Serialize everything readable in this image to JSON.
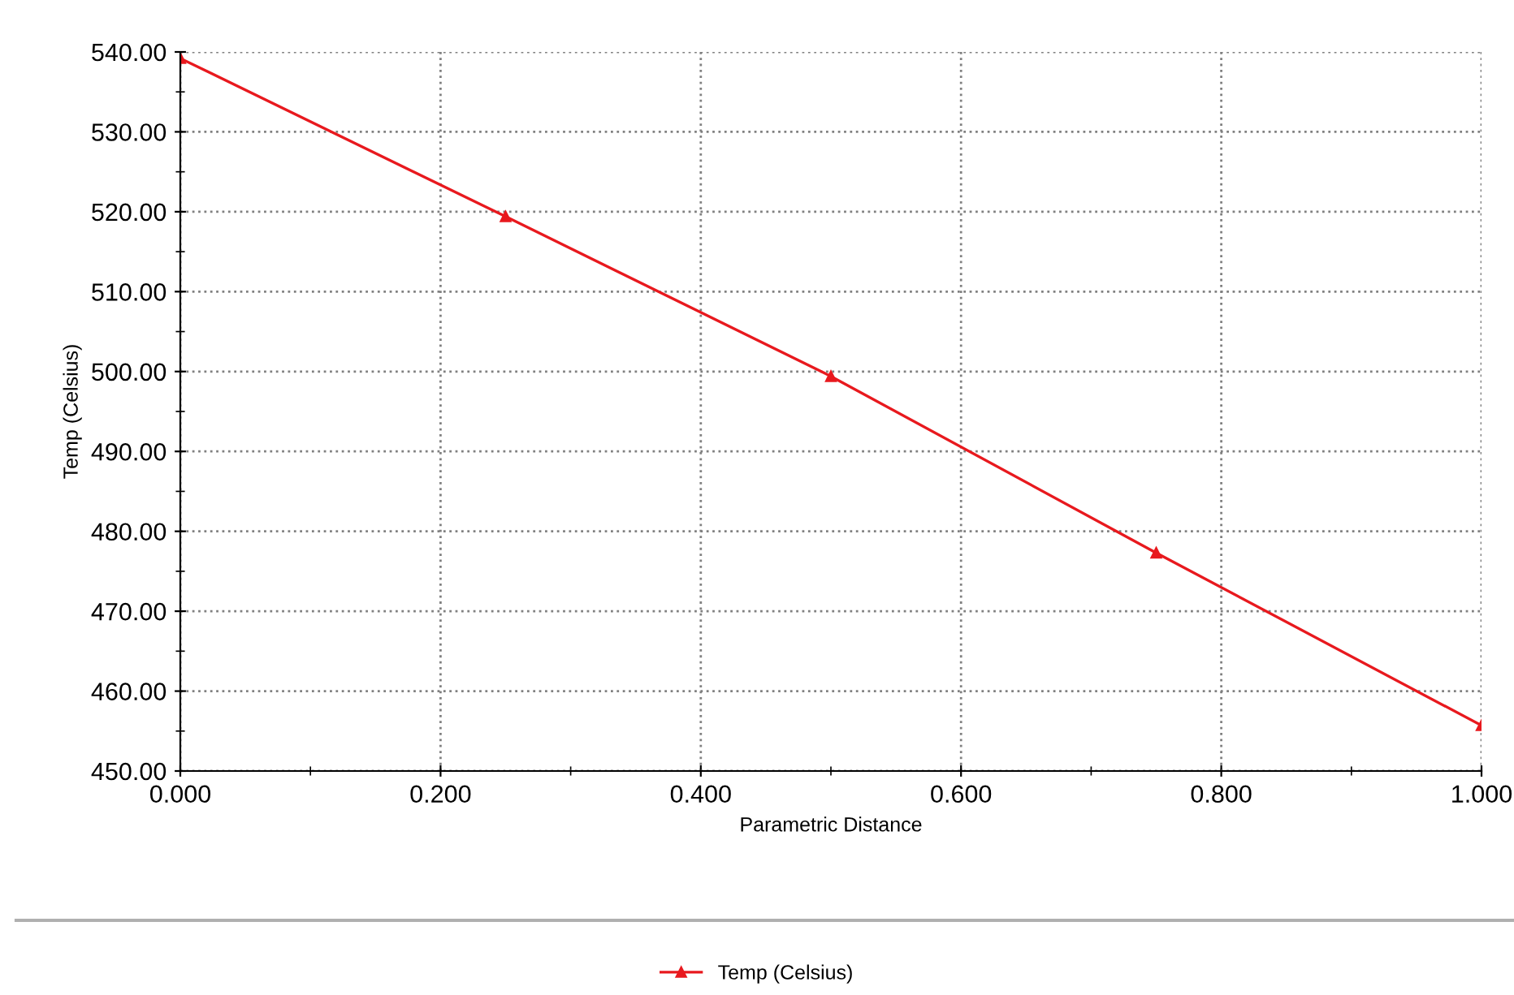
{
  "chart_data": {
    "type": "line",
    "xlabel": "Parametric Distance",
    "ylabel": "Temp (Celsius)",
    "x": [
      0,
      0.25,
      0.5,
      0.75,
      1.0
    ],
    "series": [
      {
        "name": "Temp (Celsius)",
        "color": "#e8191e",
        "values": [
          539.2,
          519.4,
          499.4,
          477.3,
          455.7
        ]
      }
    ],
    "xlim": [
      0,
      1.0
    ],
    "xticks": [
      {
        "value": 0,
        "label": "0.000"
      },
      {
        "value": 0.2,
        "label": "0.200"
      },
      {
        "value": 0.4,
        "label": "0.400"
      },
      {
        "value": 0.6,
        "label": "0.600"
      },
      {
        "value": 0.8,
        "label": "0.800"
      },
      {
        "value": 1.0,
        "label": "1.000"
      }
    ],
    "ylim": [
      450,
      540
    ],
    "yticks": [
      {
        "value": 450,
        "label": "450.00"
      },
      {
        "value": 460,
        "label": "460.00"
      },
      {
        "value": 470,
        "label": "470.00"
      },
      {
        "value": 480,
        "label": "480.00"
      },
      {
        "value": 490,
        "label": "490.00"
      },
      {
        "value": 500,
        "label": "500.00"
      },
      {
        "value": 510,
        "label": "510.00"
      },
      {
        "value": 520,
        "label": "520.00"
      },
      {
        "value": 530,
        "label": "530.00"
      },
      {
        "value": 540,
        "label": "540.00"
      }
    ],
    "grid": true,
    "legend": "bottom",
    "marker": "triangle",
    "line_style": "solid"
  }
}
